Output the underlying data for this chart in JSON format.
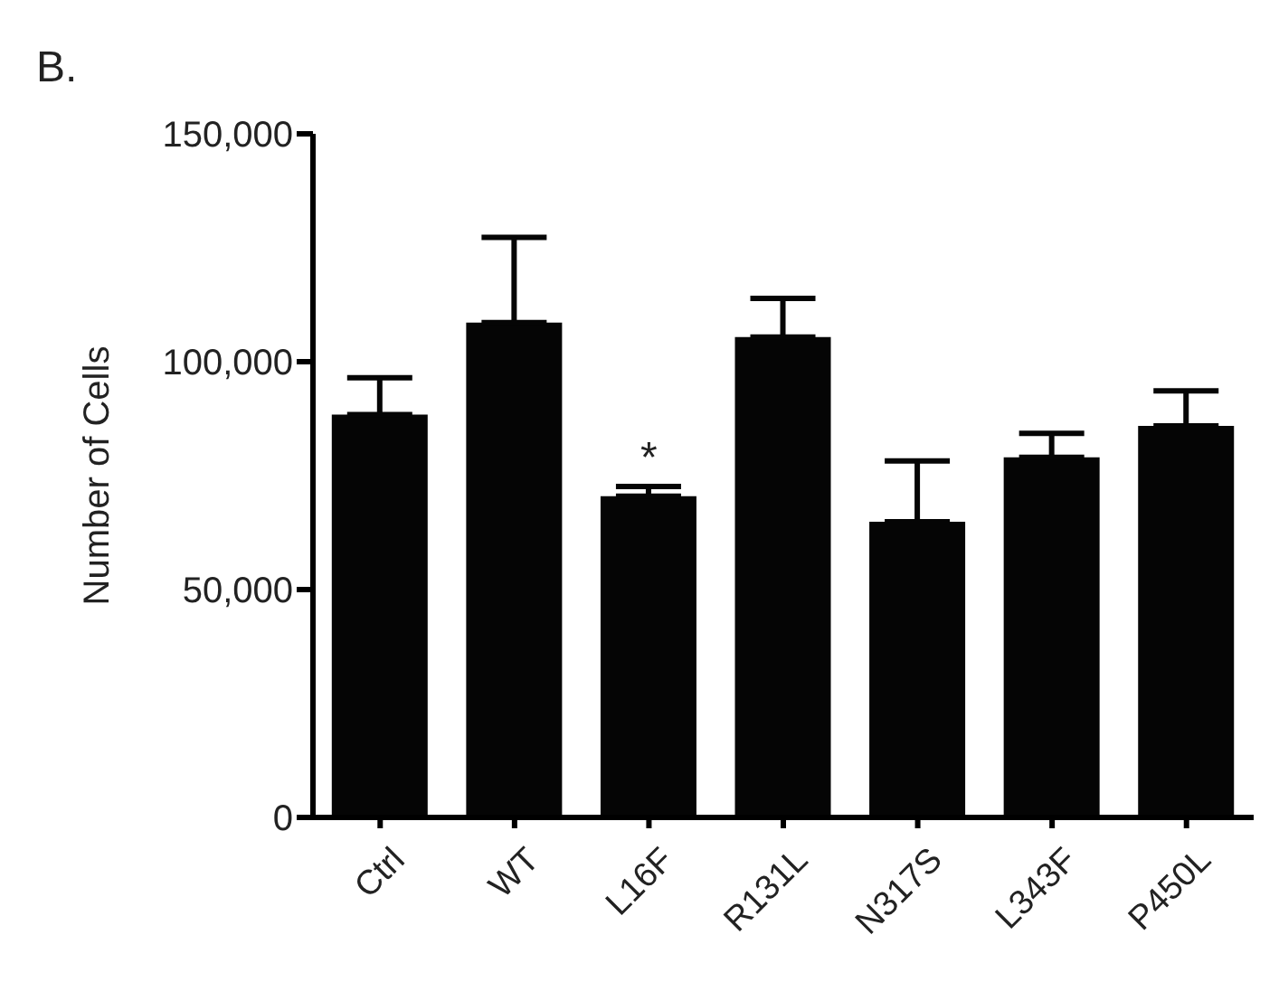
{
  "chart_data": {
    "type": "bar",
    "ylabel": "Number of Cells",
    "categories": [
      "Ctrl",
      "WT",
      "L16F",
      "R131L",
      "N317S",
      "L343F",
      "P450L"
    ],
    "series": [
      {
        "color": "#050505",
        "values": [
          88400,
          108600,
          70500,
          105400,
          64900,
          79000,
          85900
        ],
        "errors": [
          [
            88400,
            96500
          ],
          [
            108600,
            127300
          ],
          [
            70500,
            72600
          ],
          [
            105400,
            113900
          ],
          [
            64900,
            78200
          ],
          [
            79000,
            84300
          ],
          [
            85900,
            93600
          ]
        ]
      }
    ],
    "ylim": [
      0,
      150000
    ],
    "yticks": [
      {
        "value": 0,
        "label": "0"
      },
      {
        "value": 50000,
        "label": "50,000"
      },
      {
        "value": 100000,
        "label": "100,000"
      },
      {
        "value": 150000,
        "label": "150,000"
      }
    ],
    "annotations": [
      "B.",
      {
        "text": "*",
        "x": "L16F",
        "y": 72600
      }
    ],
    "grid": false,
    "legend": false
  }
}
